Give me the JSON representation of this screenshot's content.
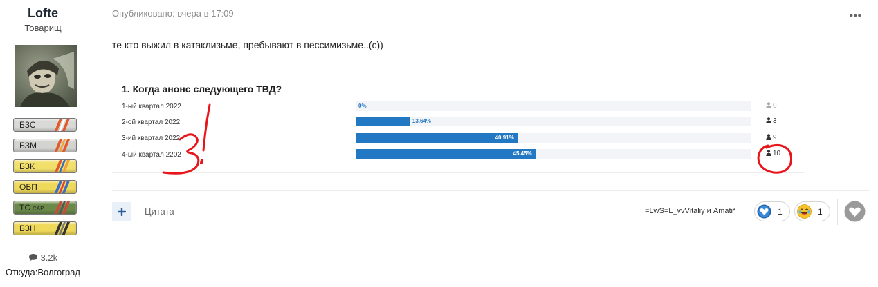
{
  "author": {
    "name": "Lofte",
    "rank": "Товарищ",
    "ribbons": [
      {
        "label": "БЗС",
        "sub": "",
        "bg": "#d9dad7",
        "stripes": [
          "#e25a2a",
          "#ffffff",
          "#e25a2a"
        ]
      },
      {
        "label": "БЗМ",
        "sub": "",
        "bg": "#d3d4d0",
        "stripes": [
          "#e25a2a",
          "#f1a33c",
          "#e25a2a"
        ]
      },
      {
        "label": "БЗК",
        "sub": "",
        "bg": "#f2e06b",
        "stripes": [
          "#e25a2a",
          "#3b6ec7",
          "#f1a33c"
        ]
      },
      {
        "label": "ОБП",
        "sub": "",
        "bg": "#efd95a",
        "stripes": [
          "#3b6ec7",
          "#e04040",
          "#3b6ec7"
        ]
      },
      {
        "label": "ТС",
        "sub": "CAP",
        "bg": "#6b8a4a",
        "stripes": [
          "#c84b3b",
          "#555555",
          "#c84b3b"
        ]
      },
      {
        "label": "БЗН",
        "sub": "",
        "bg": "#efd95a",
        "stripes": [
          "#333333",
          "#777777",
          "#333333"
        ]
      }
    ],
    "posts": "3.2k",
    "location": "Откуда:Волгоград"
  },
  "post": {
    "meta": "Опубликовано: вчера в 17:09",
    "menu": "•••",
    "text": "те кто выжил в катаклизьме, пребывают в пессимизьме..(с))"
  },
  "poll": {
    "question": "1. Когда анонс следующего ТВД?",
    "choices": [
      {
        "label": "1-ый квартал 2022",
        "percent": 0,
        "percent_label": "0%",
        "votes": "0"
      },
      {
        "label": "2-ой квартал 2022",
        "percent": 13.64,
        "percent_label": "13.64%",
        "votes": "3"
      },
      {
        "label": "3-ий квартал 2022",
        "percent": 40.91,
        "percent_label": "40.91%",
        "votes": "9"
      },
      {
        "label": "4-ый квартал 2202",
        "percent": 45.45,
        "percent_label": "45.45%",
        "votes": "10"
      }
    ]
  },
  "footer": {
    "quote_icon": "plus-icon",
    "quote_label": "Цитата",
    "reactors": "=LwS=L_vvVitaliy и Amati*",
    "reactions": [
      {
        "icon": "heart-reaction-icon",
        "count": "1"
      },
      {
        "icon": "laugh-reaction-icon",
        "count": "1"
      }
    ],
    "react_icon": "heart-icon"
  },
  "colors": {
    "bar": "#2378c3",
    "track": "#f2f4f7",
    "annotation": "#e8161b"
  }
}
